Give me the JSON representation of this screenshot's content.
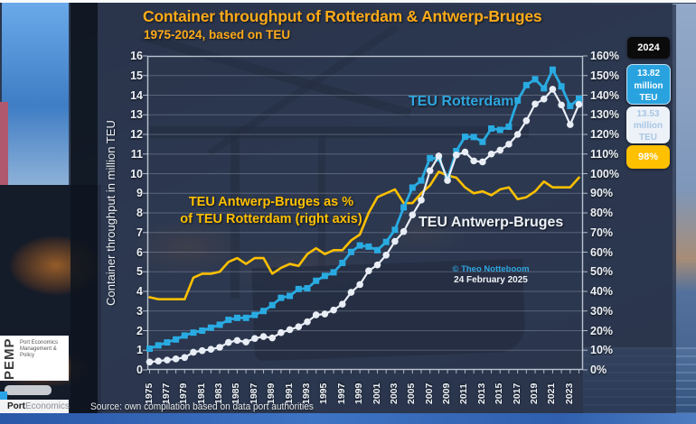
{
  "header": {
    "title": "Container throughput of Rotterdam & Antwerp-Bruges",
    "subtitle": "1975-2024, based on TEU"
  },
  "chart_data": {
    "type": "line",
    "x_start": 1975,
    "x_end": 2024,
    "x_tick_labels": [
      "1975",
      "1977",
      "1979",
      "1981",
      "1983",
      "1985",
      "1987",
      "1989",
      "1991",
      "1993",
      "1995",
      "1997",
      "1999",
      "2001",
      "2003",
      "2005",
      "2007",
      "2009",
      "2011",
      "2013",
      "2015",
      "2017",
      "2019",
      "2021",
      "2023"
    ],
    "left_axis": {
      "label": "Container throughput in million TEU",
      "min": 0,
      "max": 16,
      "step": 1
    },
    "right_axis": {
      "min": 0,
      "max": 160,
      "step": 10,
      "suffix": "%"
    },
    "grid": "horizontal",
    "legend_position": "in-chart labels",
    "series": [
      {
        "name": "TEU Antwerp-Bruges as % of TEU Rotterdam",
        "axis": "right",
        "color": "#ffc000",
        "marker": "none",
        "values": [
          37,
          36,
          36,
          36,
          36,
          47,
          49,
          49,
          50,
          55,
          57,
          54,
          57,
          57,
          49,
          52,
          54,
          53,
          59,
          62,
          59,
          61,
          61,
          66,
          69,
          80,
          88,
          90,
          92,
          85,
          85,
          90,
          94,
          101,
          99,
          98,
          93,
          90,
          91,
          89,
          92,
          93,
          87,
          88,
          91,
          96,
          93,
          93,
          93,
          98
        ]
      },
      {
        "name": "TEU Rotterdam",
        "axis": "left",
        "color": "#29abe2",
        "marker": "square",
        "values": [
          1.08,
          1.25,
          1.4,
          1.55,
          1.75,
          1.9,
          2.0,
          2.15,
          2.3,
          2.55,
          2.65,
          2.65,
          2.8,
          3.0,
          3.3,
          3.67,
          3.77,
          4.12,
          4.16,
          4.54,
          4.79,
          4.97,
          5.45,
          6.01,
          6.34,
          6.28,
          6.1,
          6.52,
          7.14,
          8.28,
          9.29,
          9.65,
          10.79,
          10.78,
          9.74,
          11.15,
          11.88,
          11.87,
          11.62,
          12.3,
          12.23,
          12.39,
          13.73,
          14.51,
          14.81,
          14.35,
          15.3,
          14.45,
          13.45,
          13.82
        ]
      },
      {
        "name": "TEU Antwerp-Bruges",
        "axis": "left",
        "color": "#e9eef6",
        "marker": "circle",
        "values": [
          0.4,
          0.45,
          0.5,
          0.56,
          0.63,
          0.9,
          0.98,
          1.05,
          1.15,
          1.4,
          1.5,
          1.42,
          1.6,
          1.7,
          1.63,
          1.9,
          2.05,
          2.2,
          2.45,
          2.8,
          2.85,
          3.05,
          3.35,
          3.95,
          4.35,
          5.05,
          5.35,
          5.85,
          6.55,
          7.05,
          7.9,
          8.65,
          10.15,
          10.9,
          9.65,
          10.95,
          11.1,
          10.65,
          10.6,
          11.0,
          11.2,
          11.5,
          12.0,
          12.7,
          13.55,
          13.8,
          14.3,
          13.5,
          12.5,
          13.53
        ]
      }
    ],
    "annotations": {
      "rotterdam_label": "TEU Rotterdam",
      "antwerp_label": "TEU Antwerp-Bruges",
      "pct_line1": "TEU Antwerp-Bruges as %",
      "pct_line2": "of TEU Rotterdam (right axis)",
      "credit_line1": "© Theo Notteboom",
      "credit_line2": "24 February 2025"
    }
  },
  "legend_boxes": {
    "year": {
      "label": "2024",
      "bg": "#0b0b0b",
      "text_color": "#ffffff"
    },
    "rotterdam": {
      "lines": [
        "13.82",
        "million",
        "TEU"
      ],
      "bg": "#29a3df",
      "text_color": "#ffffff"
    },
    "antwerp": {
      "lines": [
        "13.53",
        "million",
        "TEU"
      ],
      "bg": "#edf2f8",
      "text_color": "#a8c6e4"
    },
    "ratio": {
      "label": "98%",
      "bg": "#ffc000",
      "text_color": "#ffffff"
    }
  },
  "footer": {
    "source": "Source: own compilation based on data port authorities"
  },
  "logo": {
    "mark": "PEMP",
    "line1": "Port Economics",
    "line2": "Management & Policy",
    "brand_bold": "Port",
    "brand_light": "Economics"
  }
}
